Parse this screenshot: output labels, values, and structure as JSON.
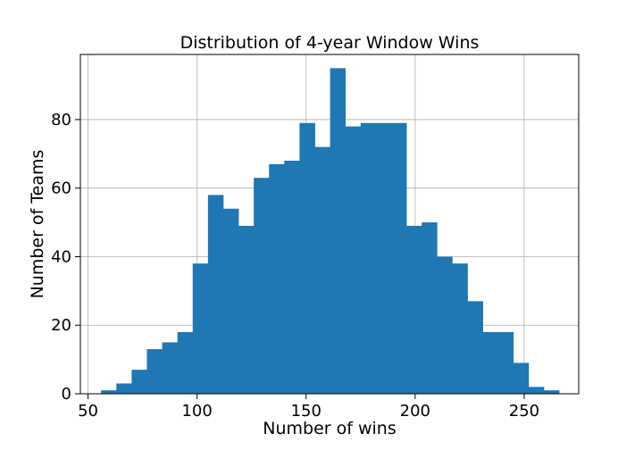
{
  "chart_data": {
    "type": "bar",
    "title": "Distribution of 4-year Window Wins",
    "xlabel": "Number of wins",
    "ylabel": "Number of Teams",
    "xlim": [
      46.5,
      275
    ],
    "ylim": [
      0,
      99
    ],
    "xticks": [
      50,
      100,
      150,
      200,
      250
    ],
    "yticks": [
      0,
      20,
      40,
      60,
      80
    ],
    "grid": true,
    "bar_color": "#1f77b4",
    "bins": [
      {
        "x0": 56,
        "x1": 63,
        "value": 1
      },
      {
        "x0": 63,
        "x1": 70,
        "value": 3
      },
      {
        "x0": 70,
        "x1": 77,
        "value": 7
      },
      {
        "x0": 77,
        "x1": 84,
        "value": 13
      },
      {
        "x0": 84,
        "x1": 91,
        "value": 15
      },
      {
        "x0": 91,
        "x1": 98,
        "value": 18
      },
      {
        "x0": 98,
        "x1": 105,
        "value": 38
      },
      {
        "x0": 105,
        "x1": 112,
        "value": 58
      },
      {
        "x0": 112,
        "x1": 119,
        "value": 54
      },
      {
        "x0": 119,
        "x1": 126,
        "value": 49
      },
      {
        "x0": 126,
        "x1": 133,
        "value": 63
      },
      {
        "x0": 133,
        "x1": 140,
        "value": 67
      },
      {
        "x0": 140,
        "x1": 147,
        "value": 68
      },
      {
        "x0": 147,
        "x1": 154,
        "value": 79
      },
      {
        "x0": 154,
        "x1": 161,
        "value": 72
      },
      {
        "x0": 161,
        "x1": 168,
        "value": 95
      },
      {
        "x0": 168,
        "x1": 175,
        "value": 78
      },
      {
        "x0": 175,
        "x1": 182,
        "value": 79
      },
      {
        "x0": 182,
        "x1": 189,
        "value": 79
      },
      {
        "x0": 189,
        "x1": 196,
        "value": 79
      },
      {
        "x0": 196,
        "x1": 203,
        "value": 49
      },
      {
        "x0": 203,
        "x1": 210,
        "value": 50
      },
      {
        "x0": 210,
        "x1": 217,
        "value": 40
      },
      {
        "x0": 217,
        "x1": 224,
        "value": 38
      },
      {
        "x0": 224,
        "x1": 231,
        "value": 27
      },
      {
        "x0": 231,
        "x1": 238,
        "value": 18
      },
      {
        "x0": 238,
        "x1": 245,
        "value": 18
      },
      {
        "x0": 245,
        "x1": 252,
        "value": 9
      },
      {
        "x0": 252,
        "x1": 259,
        "value": 2
      },
      {
        "x0": 259,
        "x1": 266,
        "value": 1
      }
    ]
  }
}
